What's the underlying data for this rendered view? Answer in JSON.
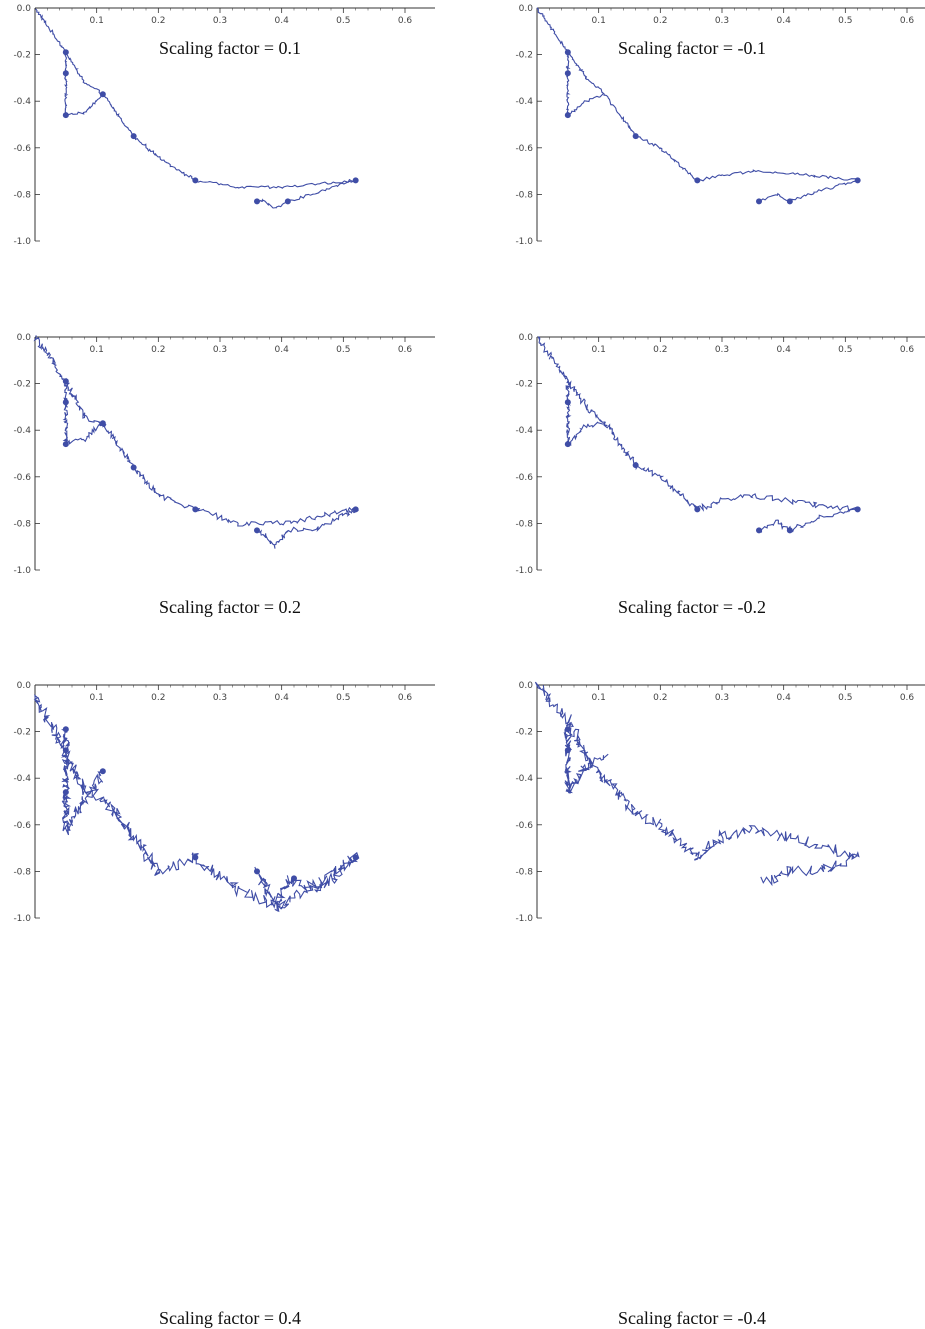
{
  "colors": {
    "curve": "#3f4da6",
    "axis": "#333333"
  },
  "chart_data": [
    {
      "type": "line",
      "caption": "Scaling factor = 0.1",
      "roughness": 0.1,
      "xlim": [
        0,
        0.6
      ],
      "ylim": [
        -1.0,
        0.0
      ],
      "xticks": [
        "0.1",
        "0.2",
        "0.3",
        "0.4",
        "0.5",
        "0.6"
      ],
      "yticks": [
        "0.0",
        "-0.2",
        "-0.4",
        "-0.6",
        "-0.8",
        "-1.0"
      ],
      "path": [
        [
          0,
          0
        ],
        [
          0.05,
          -0.19
        ],
        [
          0.08,
          -0.32
        ],
        [
          0.11,
          -0.37
        ],
        [
          0.16,
          -0.55
        ],
        [
          0.2,
          -0.64
        ],
        [
          0.26,
          -0.74
        ],
        [
          0.33,
          -0.77
        ],
        [
          0.4,
          -0.77
        ],
        [
          0.52,
          -0.74
        ],
        [
          0.46,
          -0.79
        ],
        [
          0.41,
          -0.83
        ],
        [
          0.39,
          -0.86
        ],
        [
          0.37,
          -0.83
        ],
        [
          0.36,
          -0.83
        ]
      ],
      "jump": [
        [
          0.05,
          -0.19
        ],
        [
          0.05,
          -0.46
        ],
        [
          0.08,
          -0.45
        ],
        [
          0.11,
          -0.37
        ]
      ],
      "markers": [
        [
          0.05,
          -0.19
        ],
        [
          0.05,
          -0.28
        ],
        [
          0.05,
          -0.46
        ],
        [
          0.11,
          -0.37
        ],
        [
          0.16,
          -0.55
        ],
        [
          0.26,
          -0.74
        ],
        [
          0.52,
          -0.74
        ],
        [
          0.41,
          -0.83
        ],
        [
          0.36,
          -0.83
        ]
      ]
    },
    {
      "type": "line",
      "caption": "Scaling factor = -0.1",
      "roughness": -0.1,
      "xlim": [
        0,
        0.6
      ],
      "ylim": [
        -1.0,
        0.0
      ],
      "xticks": [
        "0.1",
        "0.2",
        "0.3",
        "0.4",
        "0.5",
        "0.6"
      ],
      "yticks": [
        "0.0",
        "-0.2",
        "-0.4",
        "-0.6",
        "-0.8",
        "-1.0"
      ],
      "path": [
        [
          0,
          0
        ],
        [
          0.05,
          -0.19
        ],
        [
          0.08,
          -0.3
        ],
        [
          0.11,
          -0.37
        ],
        [
          0.16,
          -0.55
        ],
        [
          0.2,
          -0.6
        ],
        [
          0.26,
          -0.74
        ],
        [
          0.3,
          -0.72
        ],
        [
          0.35,
          -0.7
        ],
        [
          0.45,
          -0.72
        ],
        [
          0.52,
          -0.74
        ],
        [
          0.45,
          -0.79
        ],
        [
          0.41,
          -0.83
        ],
        [
          0.39,
          -0.8
        ],
        [
          0.36,
          -0.83
        ]
      ],
      "jump": [
        [
          0.05,
          -0.19
        ],
        [
          0.05,
          -0.46
        ],
        [
          0.08,
          -0.4
        ],
        [
          0.11,
          -0.37
        ]
      ],
      "markers": [
        [
          0.05,
          -0.19
        ],
        [
          0.05,
          -0.28
        ],
        [
          0.05,
          -0.46
        ],
        [
          0.16,
          -0.55
        ],
        [
          0.26,
          -0.74
        ],
        [
          0.52,
          -0.74
        ],
        [
          0.41,
          -0.83
        ],
        [
          0.36,
          -0.83
        ]
      ]
    },
    {
      "type": "line",
      "caption": "Scaling factor = 0.2",
      "roughness": 0.2,
      "xlim": [
        0,
        0.6
      ],
      "ylim": [
        -1.0,
        0.0
      ],
      "xticks": [
        "0.1",
        "0.2",
        "0.3",
        "0.4",
        "0.5",
        "0.6"
      ],
      "yticks": [
        "0.0",
        "-0.2",
        "-0.4",
        "-0.6",
        "-0.8",
        "-1.0"
      ],
      "path": [
        [
          0,
          0
        ],
        [
          0.05,
          -0.19
        ],
        [
          0.08,
          -0.34
        ],
        [
          0.11,
          -0.37
        ],
        [
          0.16,
          -0.56
        ],
        [
          0.2,
          -0.68
        ],
        [
          0.26,
          -0.74
        ],
        [
          0.33,
          -0.8
        ],
        [
          0.4,
          -0.8
        ],
        [
          0.52,
          -0.74
        ],
        [
          0.46,
          -0.82
        ],
        [
          0.41,
          -0.83
        ],
        [
          0.39,
          -0.9
        ],
        [
          0.37,
          -0.85
        ],
        [
          0.36,
          -0.83
        ]
      ],
      "jump": [
        [
          0.05,
          -0.19
        ],
        [
          0.05,
          -0.46
        ],
        [
          0.08,
          -0.44
        ],
        [
          0.11,
          -0.37
        ]
      ],
      "markers": [
        [
          0.05,
          -0.19
        ],
        [
          0.05,
          -0.28
        ],
        [
          0.05,
          -0.46
        ],
        [
          0.11,
          -0.37
        ],
        [
          0.16,
          -0.56
        ],
        [
          0.26,
          -0.74
        ],
        [
          0.52,
          -0.74
        ],
        [
          0.36,
          -0.83
        ]
      ]
    },
    {
      "type": "line",
      "caption": "Scaling factor = -0.2",
      "roughness": -0.2,
      "xlim": [
        0,
        0.6
      ],
      "ylim": [
        -1.0,
        0.0
      ],
      "xticks": [
        "0.1",
        "0.2",
        "0.3",
        "0.4",
        "0.5",
        "0.6"
      ],
      "yticks": [
        "0.0",
        "-0.2",
        "-0.4",
        "-0.6",
        "-0.8",
        "-1.0"
      ],
      "path": [
        [
          0,
          0
        ],
        [
          0.05,
          -0.19
        ],
        [
          0.08,
          -0.3
        ],
        [
          0.11,
          -0.37
        ],
        [
          0.16,
          -0.55
        ],
        [
          0.2,
          -0.6
        ],
        [
          0.26,
          -0.74
        ],
        [
          0.3,
          -0.7
        ],
        [
          0.35,
          -0.68
        ],
        [
          0.45,
          -0.72
        ],
        [
          0.52,
          -0.74
        ],
        [
          0.46,
          -0.77
        ],
        [
          0.41,
          -0.83
        ],
        [
          0.39,
          -0.79
        ],
        [
          0.36,
          -0.83
        ]
      ],
      "jump": [
        [
          0.05,
          -0.19
        ],
        [
          0.05,
          -0.46
        ],
        [
          0.08,
          -0.38
        ],
        [
          0.11,
          -0.37
        ]
      ],
      "markers": [
        [
          0.05,
          -0.28
        ],
        [
          0.05,
          -0.46
        ],
        [
          0.16,
          -0.55
        ],
        [
          0.26,
          -0.74
        ],
        [
          0.52,
          -0.74
        ],
        [
          0.41,
          -0.83
        ],
        [
          0.36,
          -0.83
        ]
      ]
    },
    {
      "type": "line",
      "caption": "Scaling factor = 0.4",
      "roughness": 0.4,
      "xlim": [
        0,
        0.6
      ],
      "ylim": [
        -1.0,
        0.0
      ],
      "xticks": [
        "0.1",
        "0.2",
        "0.3",
        "0.4",
        "0.5",
        "0.6"
      ],
      "yticks": [
        "0.0",
        "-0.2",
        "-0.4",
        "-0.6",
        "-0.8",
        "-1.0"
      ],
      "path": [
        [
          0,
          -0.05
        ],
        [
          0.05,
          -0.3
        ],
        [
          0.08,
          -0.45
        ],
        [
          0.11,
          -0.48
        ],
        [
          0.16,
          -0.65
        ],
        [
          0.2,
          -0.8
        ],
        [
          0.26,
          -0.74
        ],
        [
          0.33,
          -0.88
        ],
        [
          0.4,
          -0.95
        ],
        [
          0.52,
          -0.74
        ],
        [
          0.46,
          -0.88
        ],
        [
          0.41,
          -0.83
        ],
        [
          0.39,
          -0.95
        ],
        [
          0.37,
          -0.85
        ],
        [
          0.36,
          -0.8
        ]
      ],
      "jump": [
        [
          0.05,
          -0.19
        ],
        [
          0.05,
          -0.62
        ],
        [
          0.08,
          -0.5
        ],
        [
          0.11,
          -0.37
        ]
      ],
      "markers": [
        [
          0.05,
          -0.19
        ],
        [
          0.05,
          -0.28
        ],
        [
          0.05,
          -0.46
        ],
        [
          0.11,
          -0.37
        ],
        [
          0.26,
          -0.74
        ],
        [
          0.36,
          -0.8
        ],
        [
          0.42,
          -0.83
        ],
        [
          0.52,
          -0.74
        ]
      ]
    },
    {
      "type": "line",
      "caption": "Scaling factor = -0.4",
      "roughness": -0.4,
      "xlim": [
        0,
        0.6
      ],
      "ylim": [
        -1.0,
        0.0
      ],
      "xticks": [
        "0.1",
        "0.2",
        "0.3",
        "0.4",
        "0.5",
        "0.6"
      ],
      "yticks": [
        "0.0",
        "-0.2",
        "-0.4",
        "-0.6",
        "-0.8",
        "-1.0"
      ],
      "path": [
        [
          0,
          0
        ],
        [
          0.05,
          -0.15
        ],
        [
          0.08,
          -0.3
        ],
        [
          0.11,
          -0.4
        ],
        [
          0.16,
          -0.55
        ],
        [
          0.2,
          -0.6
        ],
        [
          0.26,
          -0.74
        ],
        [
          0.3,
          -0.65
        ],
        [
          0.35,
          -0.62
        ],
        [
          0.45,
          -0.68
        ],
        [
          0.52,
          -0.74
        ],
        [
          0.46,
          -0.8
        ],
        [
          0.41,
          -0.8
        ],
        [
          0.39,
          -0.84
        ],
        [
          0.36,
          -0.83
        ]
      ],
      "jump": [
        [
          0.05,
          -0.19
        ],
        [
          0.05,
          -0.46
        ],
        [
          0.08,
          -0.35
        ],
        [
          0.11,
          -0.3
        ]
      ],
      "markers": [
        [
          0.05,
          -0.19
        ],
        [
          0.05,
          -0.28
        ]
      ]
    }
  ]
}
